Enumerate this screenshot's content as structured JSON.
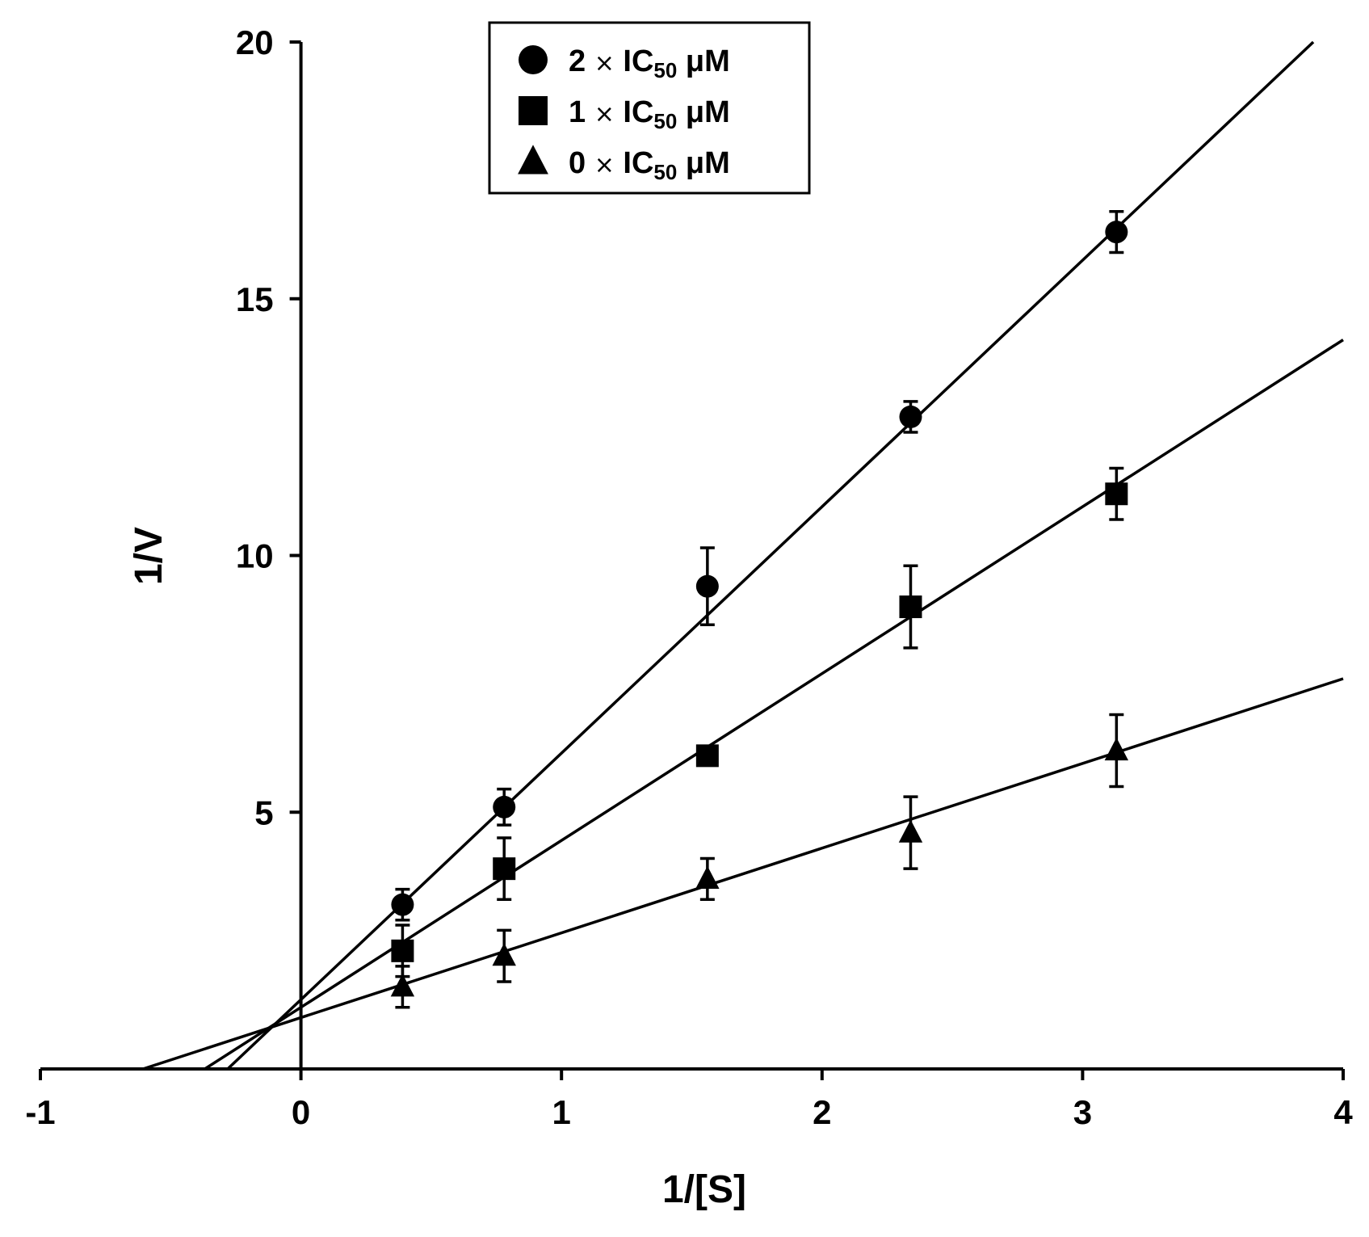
{
  "chart_data": {
    "type": "scatter",
    "title": "",
    "xlabel": "1/[S]",
    "ylabel": "1/V",
    "xlim": [
      -1,
      4
    ],
    "ylim": [
      0,
      20
    ],
    "grid": false,
    "legend_position": "top-center",
    "x_ticks": [
      -1,
      0,
      1,
      2,
      3,
      4
    ],
    "x_tick_labels": [
      "-1",
      "0",
      "1",
      "2",
      "3",
      "4"
    ],
    "y_ticks": [
      5,
      10,
      15,
      20
    ],
    "y_tick_labels": [
      "5",
      "10",
      "15",
      "20"
    ],
    "series": [
      {
        "name": "2 × IC50 μM",
        "label_parts": {
          "lead": "2 ",
          "times": "×",
          "ic": " IC",
          "sub": "50",
          "unit": " μM"
        },
        "marker": "circle",
        "x": [
          0.39,
          0.78,
          1.56,
          2.34,
          3.13
        ],
        "values": [
          3.2,
          5.1,
          9.4,
          12.7,
          16.3
        ],
        "errors": [
          0.3,
          0.35,
          0.75,
          0.3,
          0.4
        ],
        "fit": {
          "slope": 4.8,
          "intercept": 1.35
        }
      },
      {
        "name": "1 × IC50 μM",
        "label_parts": {
          "lead": "1 ",
          "times": "×",
          "ic": " IC",
          "sub": "50",
          "unit": " μM"
        },
        "marker": "square",
        "x": [
          0.39,
          0.78,
          1.56,
          2.34,
          3.13
        ],
        "values": [
          2.3,
          3.9,
          6.1,
          9.0,
          11.2
        ],
        "errors": [
          0.5,
          0.6,
          0.1,
          0.8,
          0.5
        ],
        "fit": {
          "slope": 3.25,
          "intercept": 1.2
        }
      },
      {
        "name": "0 × IC50 μM",
        "label_parts": {
          "lead": "0 ",
          "times": "×",
          "ic": " IC",
          "sub": "50",
          "unit": " μM"
        },
        "marker": "triangle",
        "x": [
          0.39,
          0.78,
          1.56,
          2.34,
          3.13
        ],
        "values": [
          1.6,
          2.2,
          3.7,
          4.6,
          6.2
        ],
        "errors": [
          0.4,
          0.5,
          0.4,
          0.7,
          0.7
        ],
        "fit": {
          "slope": 1.65,
          "intercept": 1.0
        }
      }
    ]
  }
}
